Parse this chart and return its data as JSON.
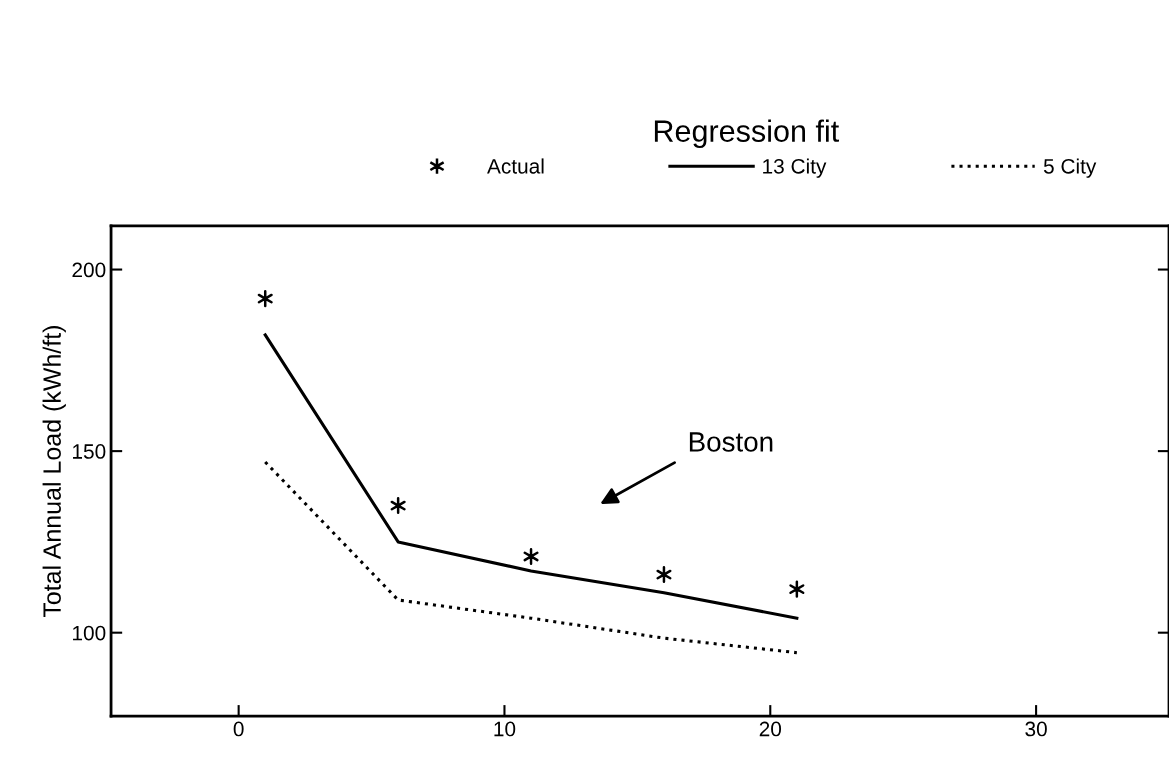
{
  "chart_data": {
    "type": "line",
    "ylabel": "Total Annual Load (kWh/ft)",
    "legend_title": "Regression fit",
    "legend": "top",
    "x": [
      1,
      6,
      11,
      16,
      21
    ],
    "series": [
      {
        "name": "Actual",
        "type": "scatter",
        "color": "#000000",
        "marker": "cross",
        "values": [
          192,
          135,
          121,
          116,
          112
        ]
      },
      {
        "name": "13 City",
        "color": "#000000",
        "line_style": "solid",
        "values": [
          182,
          125,
          117,
          111,
          104
        ]
      },
      {
        "name": "5 City",
        "color": "#000000",
        "line_style": "dotted",
        "values": [
          147,
          109,
          104,
          98.5,
          94.5
        ]
      }
    ],
    "annotations": [
      "Boston"
    ],
    "xlim": [
      -4.8,
      35
    ],
    "xticks": [
      0,
      10,
      20,
      30
    ],
    "ylim": [
      77,
      212
    ],
    "yticks": [
      100,
      150,
      200
    ],
    "grid": false
  }
}
